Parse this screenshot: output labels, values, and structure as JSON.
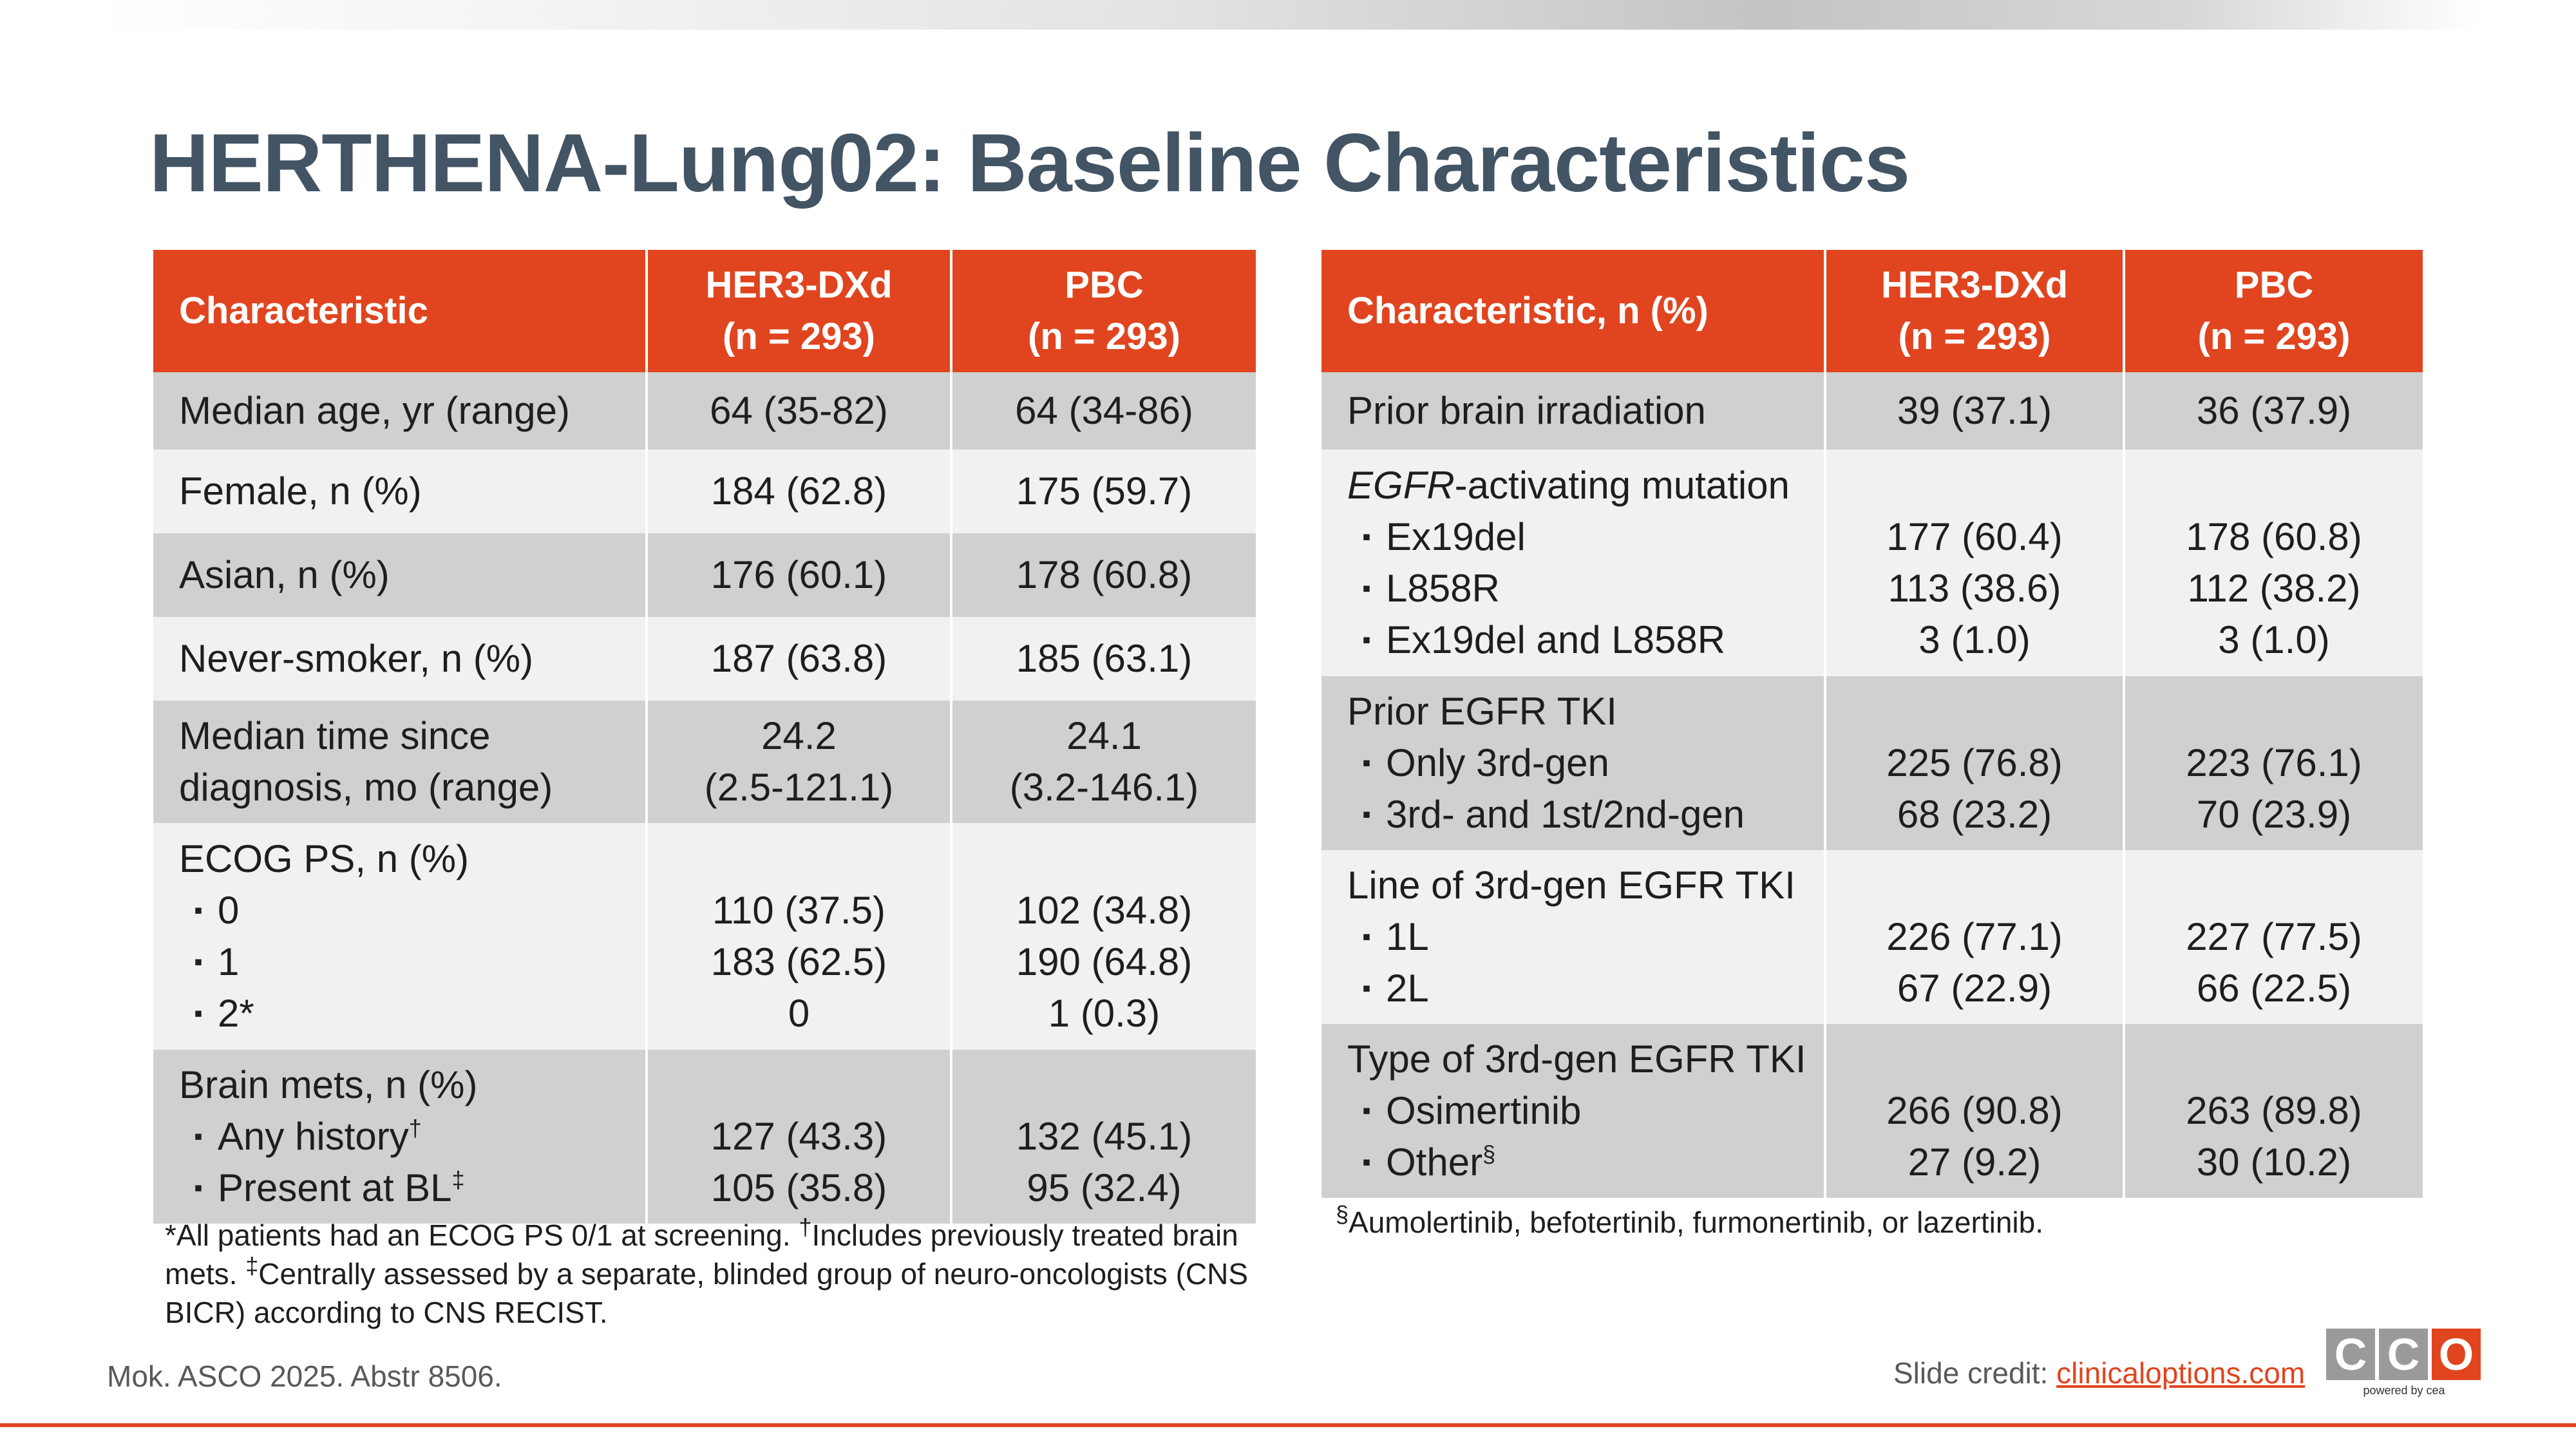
{
  "title": "HERTHENA-Lung02: Baseline Characteristics",
  "left_table": {
    "headers": [
      "Characteristic",
      "HER3-DXd\n(n = 293)",
      "PBC\n(n = 293)"
    ],
    "header_col1_line1": "HER3-DXd",
    "header_col1_line2": "(n = 293)",
    "header_col2_line1": "PBC",
    "header_col2_line2": "(n = 293)",
    "rows": [
      {
        "label": "Median age, yr (range)",
        "her3": "64 (35-82)",
        "pbc": "64 (34-86)"
      },
      {
        "label": "Female, n (%)",
        "her3": "184 (62.8)",
        "pbc": "175 (59.7)"
      },
      {
        "label": "Asian, n (%)",
        "her3": "176 (60.1)",
        "pbc": "178 (60.8)"
      },
      {
        "label": "Never-smoker, n (%)",
        "her3": "187 (63.8)",
        "pbc": "185 (63.1)"
      },
      {
        "label_line1": "Median time since",
        "label_line2": "diagnosis, mo (range)",
        "her3_line1": "24.2",
        "her3_line2": "(2.5-121.1)",
        "pbc_line1": "24.1",
        "pbc_line2": "(3.2-146.1)"
      },
      {
        "label": "ECOG PS, n (%)",
        "items": [
          {
            "label": "0",
            "her3": "110 (37.5)",
            "pbc": "102 (34.8)"
          },
          {
            "label": "1",
            "her3": "183 (62.5)",
            "pbc": "190 (64.8)"
          },
          {
            "label": "2*",
            "her3": "0",
            "pbc": "1 (0.3)"
          }
        ]
      },
      {
        "label": "Brain mets, n (%)",
        "items": [
          {
            "label": "Any history",
            "mark": "†",
            "her3": "127 (43.3)",
            "pbc": "132 (45.1)"
          },
          {
            "label": "Present at BL",
            "mark": "‡",
            "her3": "105 (35.8)",
            "pbc": "95 (32.4)"
          }
        ]
      }
    ],
    "footnote_line1": "*All patients had an ECOG PS 0/1 at screening. ",
    "footnote_mark1": "†",
    "footnote_line1b": "Includes previously treated brain",
    "footnote_line2a": "mets. ",
    "footnote_mark2": "‡",
    "footnote_line2b": "Centrally assessed by a separate, blinded group of neuro-oncologists (CNS",
    "footnote_line3": "BICR) according to CNS RECIST."
  },
  "right_table": {
    "header_col0": "Characteristic, n (%)",
    "header_col1_line1": "HER3-DXd",
    "header_col1_line2": "(n = 293)",
    "header_col2_line1": "PBC",
    "header_col2_line2": "(n = 293)",
    "rows": [
      {
        "label": "Prior brain irradiation",
        "her3": "39 (37.1)",
        "pbc": "36 (37.9)"
      },
      {
        "label_italic": "EGFR",
        "label_rest": "-activating mutation",
        "items": [
          {
            "label": "Ex19del",
            "her3": "177 (60.4)",
            "pbc": "178 (60.8)"
          },
          {
            "label": "L858R",
            "her3": "113 (38.6)",
            "pbc": "112 (38.2)"
          },
          {
            "label": "Ex19del and L858R",
            "her3": "3 (1.0)",
            "pbc": "3 (1.0)"
          }
        ]
      },
      {
        "label": "Prior EGFR TKI",
        "items": [
          {
            "label": "Only 3rd-gen",
            "her3": "225 (76.8)",
            "pbc": "223 (76.1)"
          },
          {
            "label": "3rd- and 1st/2nd-gen",
            "her3": "68 (23.2)",
            "pbc": "70 (23.9)"
          }
        ]
      },
      {
        "label": "Line of 3rd-gen EGFR TKI",
        "items": [
          {
            "label": "1L",
            "her3": "226 (77.1)",
            "pbc": "227 (77.5)"
          },
          {
            "label": "2L",
            "her3": "67 (22.9)",
            "pbc": "66 (22.5)"
          }
        ]
      },
      {
        "label": "Type of 3rd-gen EGFR TKI",
        "items": [
          {
            "label": "Osimertinib",
            "her3": "266 (90.8)",
            "pbc": "263 (89.8)"
          },
          {
            "label": "Other",
            "mark": "§",
            "her3": "27 (9.2)",
            "pbc": "30 (10.2)"
          }
        ]
      }
    ],
    "footnote_mark": "§",
    "footnote": "Aumolertinib, befotertinib, furmonertinib, or lazertinib."
  },
  "bullet_glyph": "▪",
  "source": "Mok. ASCO 2025. Abstr 8506.",
  "credit_label": "Slide credit: ",
  "credit_link": "clinicaloptions.com",
  "logo_letters": [
    "C",
    "C",
    "O"
  ],
  "logo_tagline": "powered by cea",
  "colors": {
    "accent": "#e0451f",
    "title": "#435464",
    "row_dark": "#d0d0d1",
    "row_light": "#f1f1f1"
  }
}
